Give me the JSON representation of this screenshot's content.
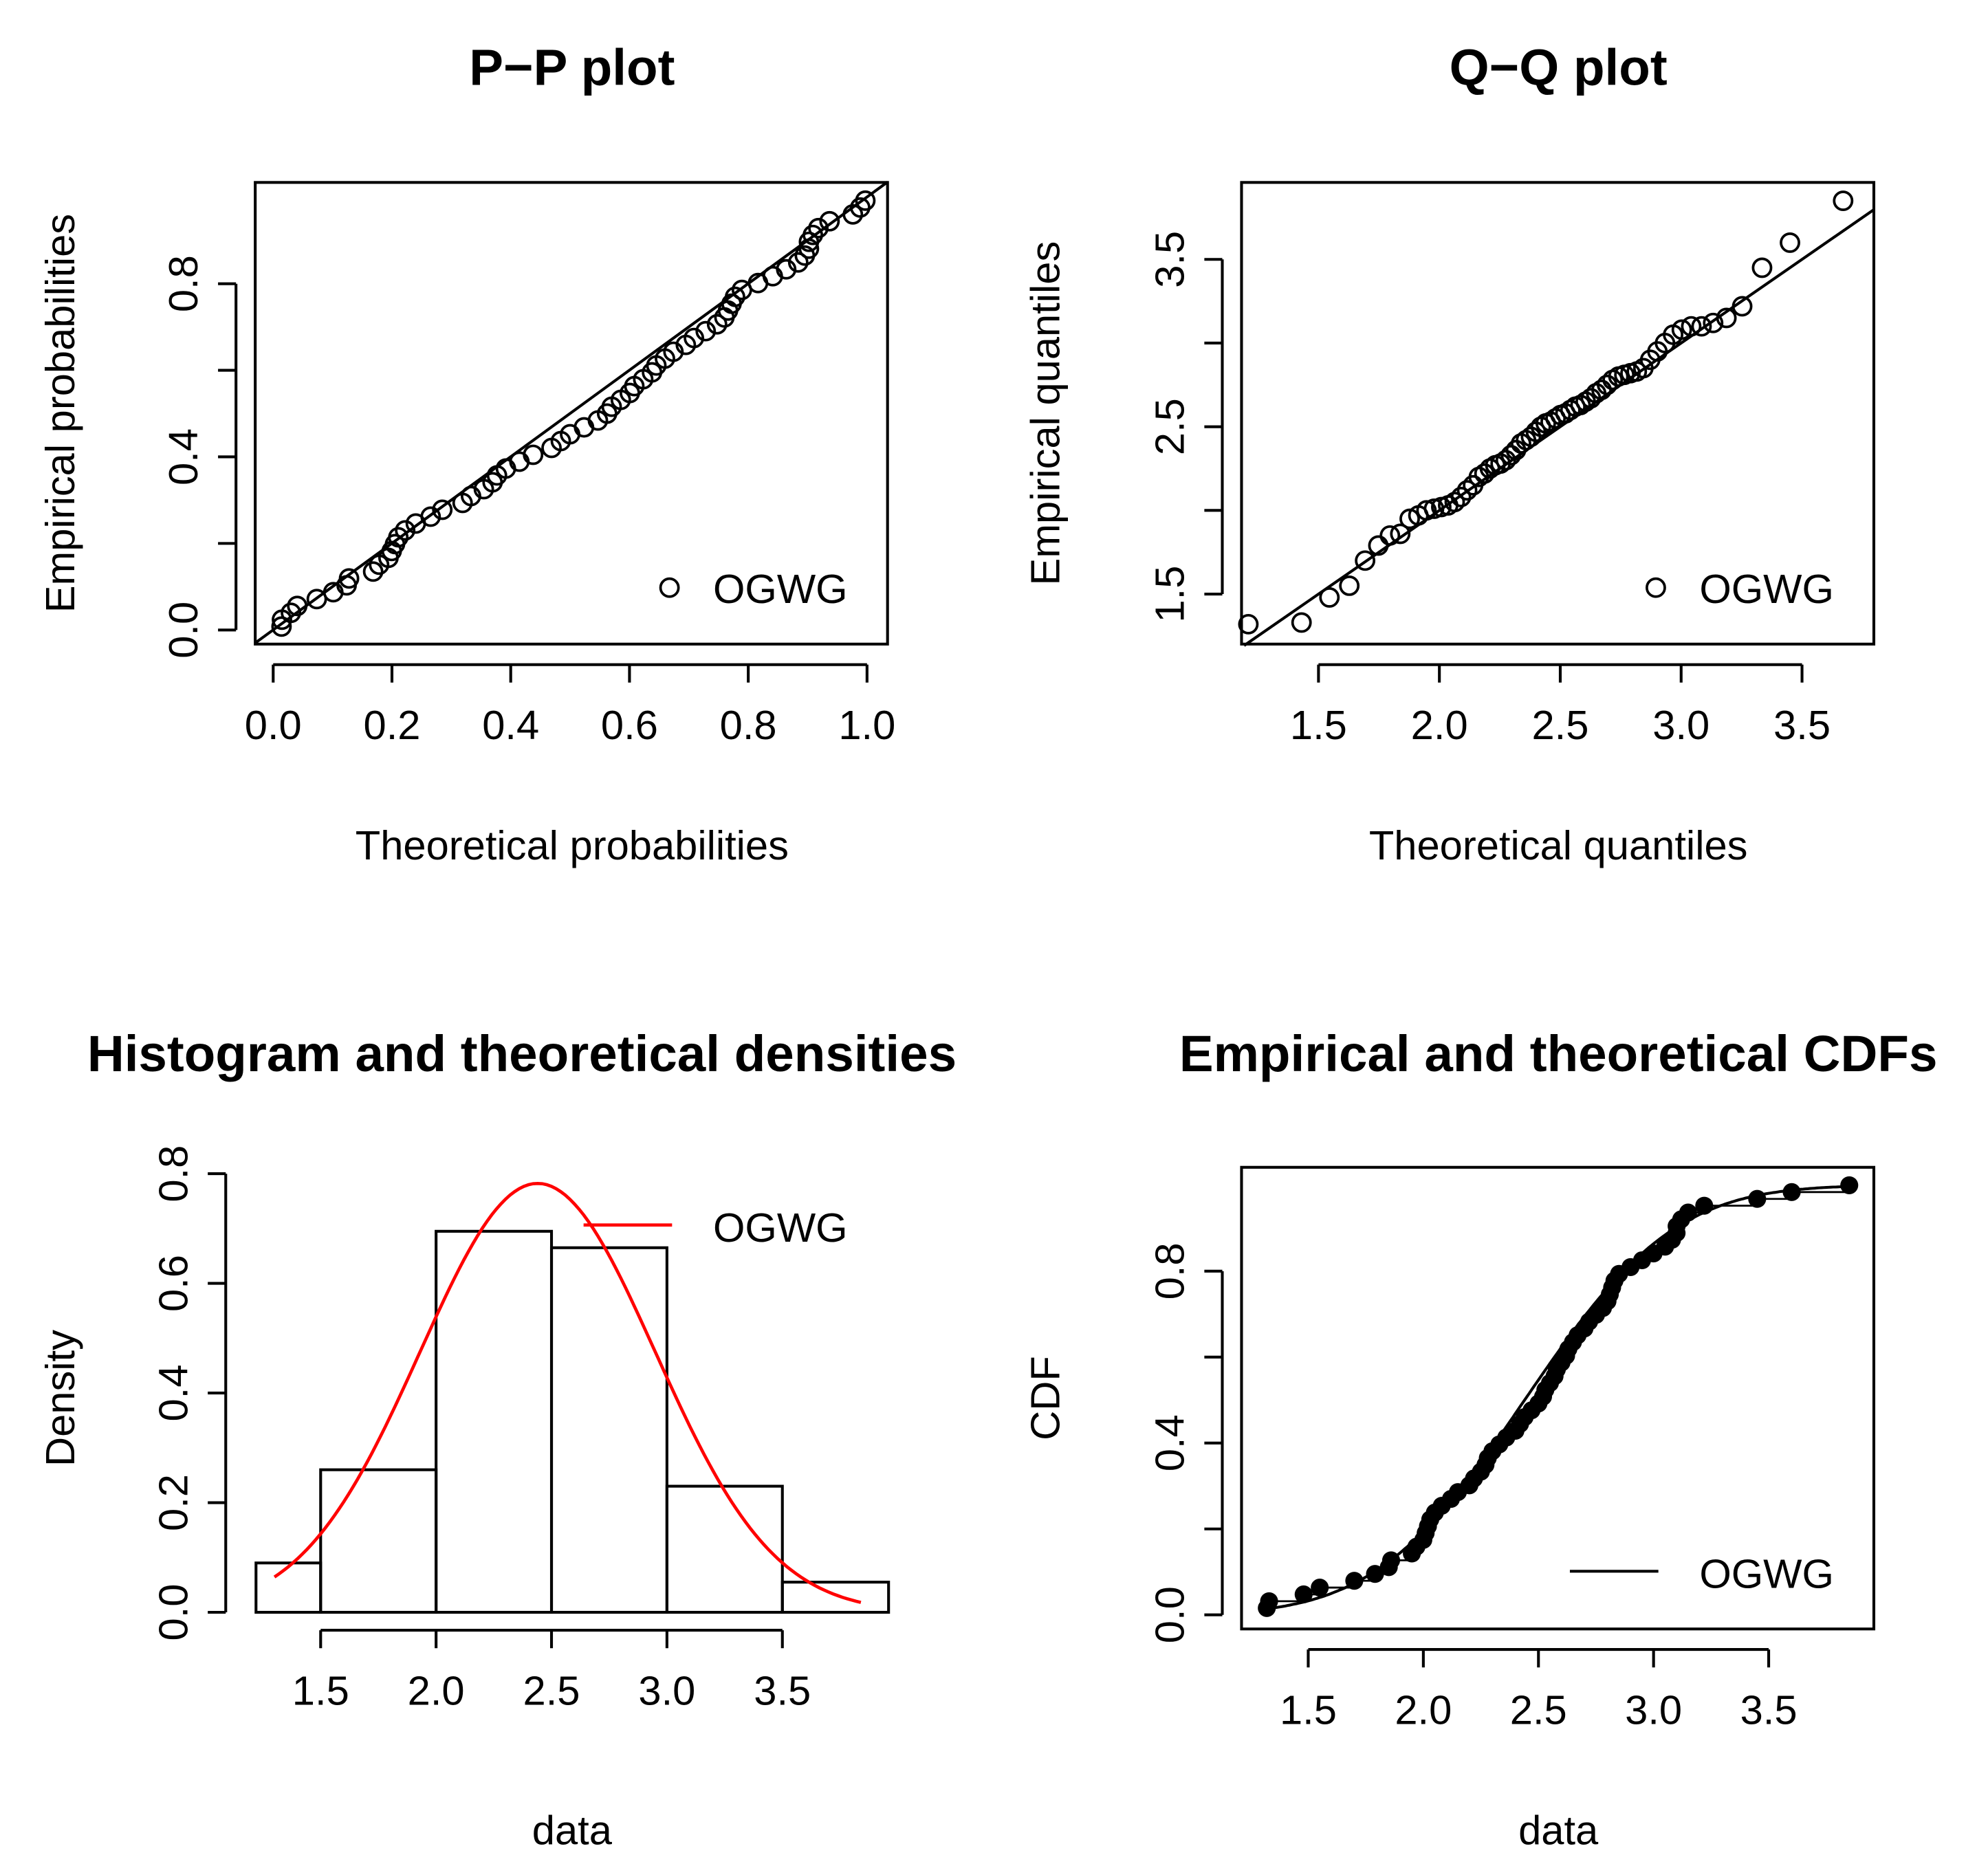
{
  "chart_data": [
    {
      "type": "scatter",
      "title": "P−P plot",
      "xlabel": "Theoretical probabilities",
      "ylabel": "Empirical probabilities",
      "xlim": [
        0,
        1
      ],
      "ylim": [
        0,
        1
      ],
      "xticks": [
        "0.0",
        "0.2",
        "0.4",
        "0.6",
        "0.8",
        "1.0"
      ],
      "yticks": [
        "0.0",
        "0.4",
        "0.8"
      ],
      "legend": "OGWG",
      "legend_position": "bottom-right"
    },
    {
      "type": "scatter",
      "title": "Q−Q plot",
      "xlabel": "Theoretical quantiles",
      "ylabel": "Empirical quantiles",
      "xticks": [
        "1.5",
        "2.0",
        "2.5",
        "3.0",
        "3.5"
      ],
      "yticks": [
        "1.5",
        "2.5",
        "3.5"
      ],
      "legend": "OGWG",
      "legend_position": "bottom-right"
    },
    {
      "type": "bar",
      "title": "Histogram and theoretical densities",
      "xlabel": "data",
      "ylabel": "Density",
      "bins": [
        [
          1.22,
          1.5
        ],
        [
          1.5,
          2.0
        ],
        [
          2.0,
          2.5
        ],
        [
          2.5,
          3.0
        ],
        [
          3.0,
          3.5
        ],
        [
          3.5,
          3.96
        ]
      ],
      "values": [
        0.09,
        0.26,
        0.695,
        0.665,
        0.23,
        0.055
      ],
      "xticks": [
        "1.5",
        "2.0",
        "2.5",
        "3.0",
        "3.5"
      ],
      "yticks": [
        "0.0",
        "0.2",
        "0.4",
        "0.6",
        "0.8"
      ],
      "legend": "OGWG",
      "legend_position": "top-right",
      "curve_color": "#ff0000"
    },
    {
      "type": "line",
      "title": "Empirical and theoretical CDFs",
      "xlabel": "data",
      "ylabel": "CDF",
      "xticks": [
        "1.5",
        "2.0",
        "2.5",
        "3.0",
        "3.5"
      ],
      "yticks": [
        "0.0",
        "0.4",
        "0.8"
      ],
      "legend": "OGWG",
      "legend_position": "bottom-right"
    }
  ],
  "fit": {
    "distribution": "OGWG",
    "mean": 2.44,
    "sd": 0.51
  },
  "sample": [
    1.32,
    1.33,
    1.48,
    1.55,
    1.7,
    1.79,
    1.85,
    1.86,
    1.95,
    1.97,
    2.0,
    2.01,
    2.02,
    2.03,
    2.05,
    2.08,
    2.12,
    2.15,
    2.2,
    2.22,
    2.25,
    2.27,
    2.28,
    2.3,
    2.33,
    2.36,
    2.4,
    2.42,
    2.44,
    2.47,
    2.5,
    2.52,
    2.53,
    2.55,
    2.57,
    2.58,
    2.6,
    2.62,
    2.63,
    2.65,
    2.67,
    2.7,
    2.72,
    2.75,
    2.78,
    2.8,
    2.81,
    2.82,
    2.83,
    2.85,
    2.9,
    2.95,
    3.0,
    3.05,
    3.08,
    3.1,
    3.1,
    3.12,
    3.15,
    3.22,
    3.45,
    3.6,
    3.85
  ]
}
